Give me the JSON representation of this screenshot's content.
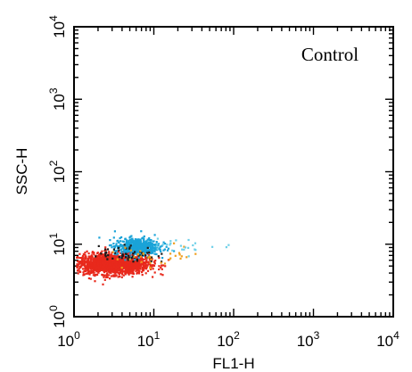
{
  "chart_data": {
    "type": "scatter",
    "panel_label": "Control",
    "xlabel": "FL1-H",
    "ylabel": "SSC-H",
    "x_scale": "log",
    "y_scale": "log",
    "xlim": [
      1,
      10000
    ],
    "ylim": [
      1,
      10000
    ],
    "x_ticks": [
      {
        "base": "10",
        "exp": "0"
      },
      {
        "base": "10",
        "exp": "1"
      },
      {
        "base": "10",
        "exp": "2"
      },
      {
        "base": "10",
        "exp": "3"
      },
      {
        "base": "10",
        "exp": "4"
      }
    ],
    "y_ticks": [
      {
        "base": "10",
        "exp": "0"
      },
      {
        "base": "10",
        "exp": "1"
      },
      {
        "base": "10",
        "exp": "2"
      },
      {
        "base": "10",
        "exp": "3"
      },
      {
        "base": "10",
        "exp": "4"
      }
    ],
    "grid": false,
    "series": [
      {
        "color": "#e8291c",
        "center": [
          3.0,
          5.5
        ],
        "spread_log": [
          0.22,
          0.07
        ],
        "count": 1800
      },
      {
        "color": "#1aa3d8",
        "center": [
          6.0,
          9.5
        ],
        "spread_log": [
          0.14,
          0.06
        ],
        "count": 550
      },
      {
        "color": "#1a1a1a",
        "center": [
          4.5,
          7.5
        ],
        "spread_log": [
          0.18,
          0.06
        ],
        "count": 60
      },
      {
        "color": "#f0a020",
        "center": [
          11.0,
          7.0
        ],
        "spread_log": [
          0.3,
          0.08
        ],
        "count": 35
      },
      {
        "color": "#6fd0e8",
        "center": [
          25.0,
          10.0
        ],
        "spread_log": [
          0.3,
          0.05
        ],
        "count": 25
      }
    ]
  }
}
